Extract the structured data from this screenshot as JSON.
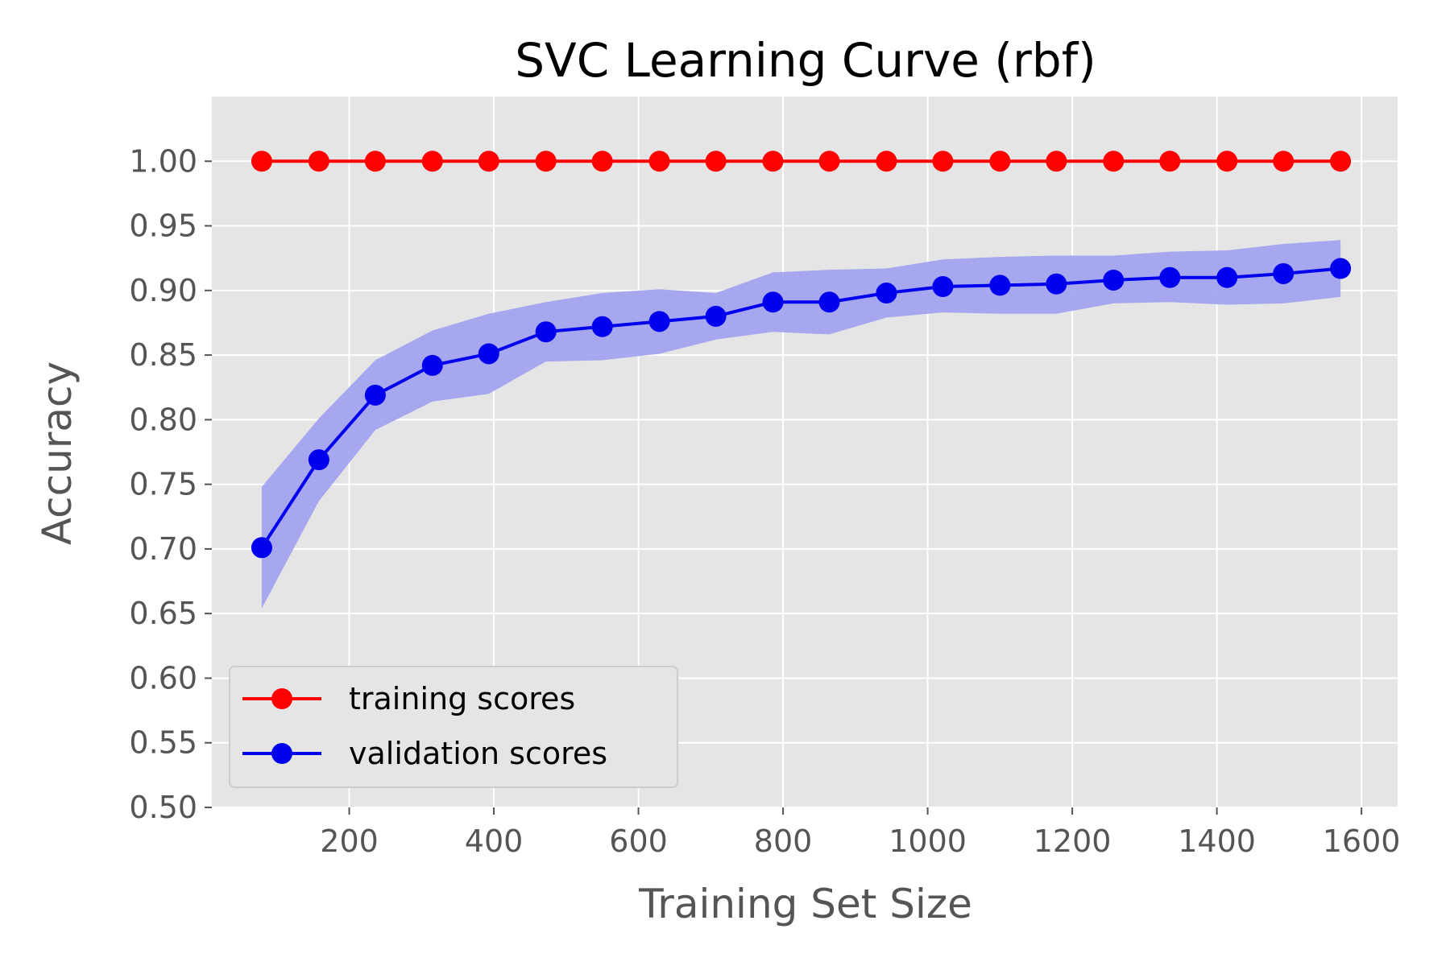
{
  "chart_data": {
    "type": "line",
    "title": "SVC Learning Curve (rbf)",
    "xlabel": "Training Set Size",
    "ylabel": "Accuracy",
    "xlim": [
      10,
      1650
    ],
    "ylim": [
      0.5,
      1.05
    ],
    "x_ticks": [
      200,
      400,
      600,
      800,
      1000,
      1200,
      1400,
      1600
    ],
    "x_tick_labels": [
      "200",
      "400",
      "600",
      "800",
      "1000",
      "1200",
      "1400",
      "1600"
    ],
    "y_ticks": [
      0.5,
      0.55,
      0.6,
      0.65,
      0.7,
      0.75,
      0.8,
      0.85,
      0.9,
      0.95,
      1.0
    ],
    "y_tick_labels": [
      "0.50",
      "0.55",
      "0.60",
      "0.65",
      "0.70",
      "0.75",
      "0.80",
      "0.85",
      "0.90",
      "0.95",
      "1.00"
    ],
    "grid": true,
    "legend_position": "lower-left",
    "background_color": "#e5e5e5",
    "x": [
      79,
      158,
      236,
      315,
      393,
      472,
      550,
      629,
      707,
      786,
      864,
      943,
      1021,
      1100,
      1178,
      1257,
      1335,
      1414,
      1492,
      1571
    ],
    "series": [
      {
        "name": "training scores",
        "color": "#ff0000",
        "values": [
          1.0,
          1.0,
          1.0,
          1.0,
          1.0,
          1.0,
          1.0,
          1.0,
          1.0,
          1.0,
          1.0,
          1.0,
          1.0,
          1.0,
          1.0,
          1.0,
          1.0,
          1.0,
          1.0,
          1.0
        ]
      },
      {
        "name": "validation scores",
        "color": "#0000ee",
        "band_color": "#a0a0f0",
        "values": [
          0.701,
          0.769,
          0.819,
          0.842,
          0.851,
          0.868,
          0.872,
          0.876,
          0.88,
          0.891,
          0.891,
          0.898,
          0.903,
          0.904,
          0.905,
          0.908,
          0.91,
          0.91,
          0.913,
          0.917
        ],
        "lower": [
          0.654,
          0.737,
          0.792,
          0.814,
          0.82,
          0.845,
          0.846,
          0.851,
          0.862,
          0.868,
          0.866,
          0.879,
          0.883,
          0.882,
          0.882,
          0.89,
          0.891,
          0.889,
          0.89,
          0.895
        ],
        "upper": [
          0.748,
          0.801,
          0.846,
          0.869,
          0.882,
          0.891,
          0.898,
          0.901,
          0.898,
          0.914,
          0.916,
          0.917,
          0.924,
          0.926,
          0.927,
          0.927,
          0.93,
          0.931,
          0.936,
          0.939
        ]
      }
    ]
  }
}
